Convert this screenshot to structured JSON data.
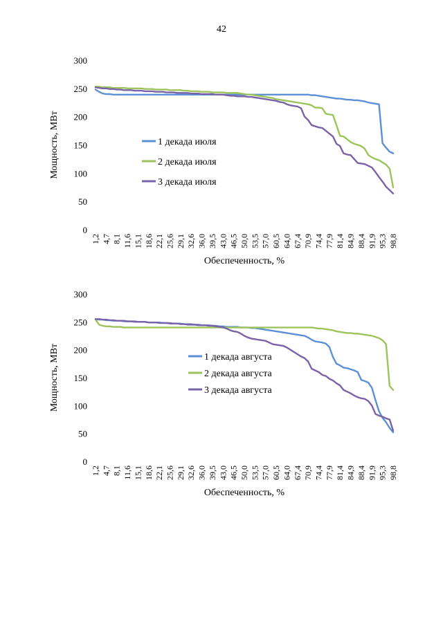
{
  "page": {
    "number": "42"
  },
  "colors": {
    "series1": "#5b8fd6",
    "series2": "#9dc35b",
    "series3": "#7a62a8",
    "text": "#000000"
  },
  "chart_data": [
    {
      "type": "line",
      "xlabel": "Обеспеченность, %",
      "ylabel": "Мощность, МВт",
      "ylim": [
        0,
        300
      ],
      "yticks": [
        "0",
        "50",
        "100",
        "150",
        "200",
        "250",
        "300"
      ],
      "grid": false,
      "legend": "middle-left",
      "x": [
        "1,2",
        "2,3",
        "3,5",
        "4,7",
        "5,8",
        "7,0",
        "8,1",
        "9,3",
        "10,5",
        "11,6",
        "12,8",
        "14,0",
        "15,1",
        "16,3",
        "17,4",
        "18,6",
        "19,8",
        "20,9",
        "22,1",
        "23,3",
        "24,4",
        "25,6",
        "26,7",
        "27,9",
        "29,1",
        "30,2",
        "31,4",
        "32,6",
        "33,7",
        "34,9",
        "36,0",
        "37,2",
        "38,4",
        "39,5",
        "40,7",
        "41,9",
        "43,0",
        "44,2",
        "45,3",
        "46,5",
        "47,7",
        "48,8",
        "50,0",
        "51,2",
        "52,3",
        "53,5",
        "54,7",
        "55,8",
        "57,0",
        "58,1",
        "59,3",
        "60,5",
        "61,6",
        "62,8",
        "64,0",
        "65,1",
        "66,3",
        "67,4",
        "68,6",
        "69,8",
        "70,9",
        "72,1",
        "73,3",
        "74,4",
        "75,6",
        "76,7",
        "77,9",
        "79,1",
        "80,2",
        "81,4",
        "82,6",
        "83,7",
        "84,9",
        "86,0",
        "87,2",
        "88,4",
        "89,5",
        "90,7",
        "91,9",
        "93,0",
        "94,2",
        "95,3",
        "96,5",
        "97,7",
        "98,8"
      ],
      "xtick_labels": [
        "1,2",
        "4,7",
        "8,1",
        "11,6",
        "15,1",
        "18,6",
        "22,1",
        "25,6",
        "29,1",
        "32,6",
        "36,0",
        "39,5",
        "43,0",
        "46,5",
        "50,0",
        "53,5",
        "57,0",
        "60,5",
        "64,0",
        "67,4",
        "70,9",
        "74,4",
        "77,9",
        "81,4",
        "84,9",
        "88,4",
        "91,9",
        "95,3",
        "98,8"
      ],
      "series": [
        {
          "name": "1 декада июля",
          "values": [
            248,
            244,
            241,
            240,
            240,
            239,
            239,
            239,
            239,
            239,
            239,
            239,
            239,
            239,
            239,
            239,
            239,
            239,
            239,
            239,
            239,
            239,
            239,
            239,
            239,
            239,
            239,
            239,
            239,
            239,
            239,
            239,
            239,
            239,
            239,
            239,
            239,
            239,
            239,
            239,
            239,
            239,
            239,
            239,
            239,
            239,
            239,
            239,
            239,
            239,
            239,
            239,
            239,
            239,
            239,
            239,
            239,
            239,
            239,
            239,
            239,
            238,
            238,
            237,
            236,
            235,
            234,
            233,
            232,
            232,
            231,
            230,
            230,
            229,
            229,
            228,
            227,
            225,
            224,
            223,
            222,
            153,
            145,
            138,
            135
          ]
        },
        {
          "name": "2 декада июля",
          "values": [
            253,
            253,
            252,
            252,
            252,
            251,
            251,
            251,
            251,
            250,
            250,
            250,
            250,
            250,
            249,
            249,
            249,
            248,
            248,
            248,
            248,
            247,
            247,
            247,
            247,
            246,
            246,
            245,
            245,
            245,
            244,
            244,
            244,
            243,
            243,
            243,
            243,
            242,
            242,
            242,
            242,
            241,
            240,
            239,
            239,
            238,
            237,
            236,
            235,
            234,
            233,
            231,
            230,
            229,
            228,
            227,
            226,
            225,
            224,
            223,
            222,
            220,
            216,
            216,
            215,
            205,
            204,
            203,
            185,
            166,
            165,
            160,
            155,
            152,
            150,
            148,
            143,
            132,
            128,
            125,
            123,
            119,
            115,
            108,
            75
          ]
        },
        {
          "name": "3 декада июля",
          "values": [
            252,
            251,
            250,
            250,
            249,
            249,
            248,
            248,
            247,
            247,
            247,
            246,
            246,
            246,
            245,
            245,
            245,
            244,
            244,
            244,
            243,
            243,
            243,
            242,
            242,
            242,
            242,
            241,
            241,
            241,
            240,
            240,
            240,
            240,
            239,
            239,
            239,
            238,
            237,
            237,
            236,
            236,
            236,
            235,
            235,
            234,
            233,
            232,
            231,
            230,
            229,
            228,
            226,
            225,
            222,
            220,
            219,
            218,
            215,
            200,
            194,
            185,
            183,
            181,
            180,
            175,
            170,
            165,
            152,
            148,
            135,
            133,
            132,
            125,
            118,
            117,
            116,
            113,
            110,
            102,
            93,
            85,
            76,
            70,
            64
          ]
        }
      ]
    },
    {
      "type": "line",
      "xlabel": "Обеспеченность, %",
      "ylabel": "Мощность, МВт",
      "ylim": [
        0,
        300
      ],
      "yticks": [
        "0",
        "50",
        "100",
        "150",
        "200",
        "250",
        "300"
      ],
      "grid": false,
      "legend": "center",
      "x": [
        "1,2",
        "2,3",
        "3,5",
        "4,7",
        "5,8",
        "7,0",
        "8,1",
        "9,3",
        "10,5",
        "11,6",
        "12,8",
        "14,0",
        "15,1",
        "16,3",
        "17,4",
        "18,6",
        "19,8",
        "20,9",
        "22,1",
        "23,3",
        "24,4",
        "25,6",
        "26,7",
        "27,9",
        "29,1",
        "30,2",
        "31,4",
        "32,6",
        "33,7",
        "34,9",
        "36,0",
        "37,2",
        "38,4",
        "39,5",
        "40,7",
        "41,9",
        "43,0",
        "44,2",
        "45,3",
        "46,5",
        "47,7",
        "48,8",
        "50,0",
        "51,2",
        "52,3",
        "53,5",
        "54,7",
        "55,8",
        "57,0",
        "58,1",
        "59,3",
        "60,5",
        "61,6",
        "62,8",
        "64,0",
        "65,1",
        "66,3",
        "67,4",
        "68,6",
        "69,8",
        "70,9",
        "72,1",
        "73,3",
        "74,4",
        "75,6",
        "76,7",
        "77,9",
        "79,1",
        "80,2",
        "81,4",
        "82,6",
        "83,7",
        "84,9",
        "86,0",
        "87,2",
        "88,4",
        "89,5",
        "90,7",
        "91,9",
        "93,0",
        "94,2",
        "95,3",
        "96,5",
        "97,7",
        "98,8"
      ],
      "xtick_labels": [
        "1,2",
        "4,7",
        "8,1",
        "11,6",
        "15,1",
        "18,6",
        "22,1",
        "25,6",
        "29,1",
        "32,6",
        "36,0",
        "39,5",
        "43,0",
        "46,5",
        "50,0",
        "53,5",
        "57,0",
        "60,5",
        "64,0",
        "67,4",
        "70,9",
        "74,4",
        "77,9",
        "81,4",
        "84,9",
        "88,4",
        "91,9",
        "95,3",
        "98,8"
      ],
      "series": [
        {
          "name": "1 декада августа",
          "values": [
            255,
            254,
            254,
            253,
            253,
            252,
            252,
            252,
            251,
            251,
            251,
            250,
            250,
            250,
            250,
            249,
            249,
            249,
            249,
            248,
            248,
            248,
            247,
            247,
            247,
            246,
            246,
            246,
            245,
            245,
            244,
            244,
            244,
            243,
            243,
            242,
            242,
            241,
            241,
            241,
            241,
            240,
            240,
            240,
            239,
            239,
            238,
            237,
            236,
            235,
            234,
            233,
            232,
            231,
            230,
            229,
            228,
            227,
            226,
            225,
            222,
            218,
            215,
            214,
            213,
            211,
            205,
            187,
            175,
            172,
            168,
            167,
            165,
            163,
            160,
            146,
            144,
            141,
            132,
            110,
            90,
            78,
            70,
            60,
            52
          ]
        },
        {
          "name": "2 декада августа",
          "values": [
            254,
            245,
            243,
            242,
            242,
            241,
            241,
            241,
            240,
            240,
            240,
            240,
            240,
            240,
            240,
            240,
            240,
            240,
            240,
            240,
            240,
            240,
            240,
            240,
            240,
            240,
            240,
            240,
            240,
            240,
            240,
            240,
            240,
            240,
            240,
            240,
            240,
            240,
            240,
            240,
            240,
            240,
            240,
            240,
            240,
            240,
            240,
            240,
            240,
            240,
            240,
            240,
            240,
            240,
            240,
            240,
            240,
            240,
            240,
            240,
            240,
            240,
            239,
            238,
            238,
            237,
            236,
            235,
            233,
            232,
            231,
            230,
            230,
            229,
            229,
            228,
            227,
            226,
            225,
            223,
            221,
            217,
            210,
            135,
            128
          ]
        },
        {
          "name": "3 декада августа",
          "values": [
            255,
            255,
            254,
            254,
            253,
            253,
            252,
            252,
            252,
            251,
            251,
            251,
            250,
            250,
            250,
            249,
            249,
            249,
            248,
            248,
            248,
            247,
            247,
            247,
            246,
            246,
            245,
            245,
            245,
            244,
            244,
            244,
            243,
            243,
            242,
            241,
            240,
            238,
            235,
            233,
            232,
            229,
            225,
            222,
            220,
            219,
            218,
            217,
            216,
            213,
            210,
            209,
            208,
            207,
            204,
            200,
            196,
            192,
            188,
            185,
            179,
            166,
            163,
            160,
            155,
            153,
            148,
            145,
            140,
            136,
            128,
            125,
            122,
            118,
            115,
            113,
            112,
            108,
            100,
            85,
            82,
            80,
            77,
            75,
            55
          ]
        }
      ]
    }
  ]
}
